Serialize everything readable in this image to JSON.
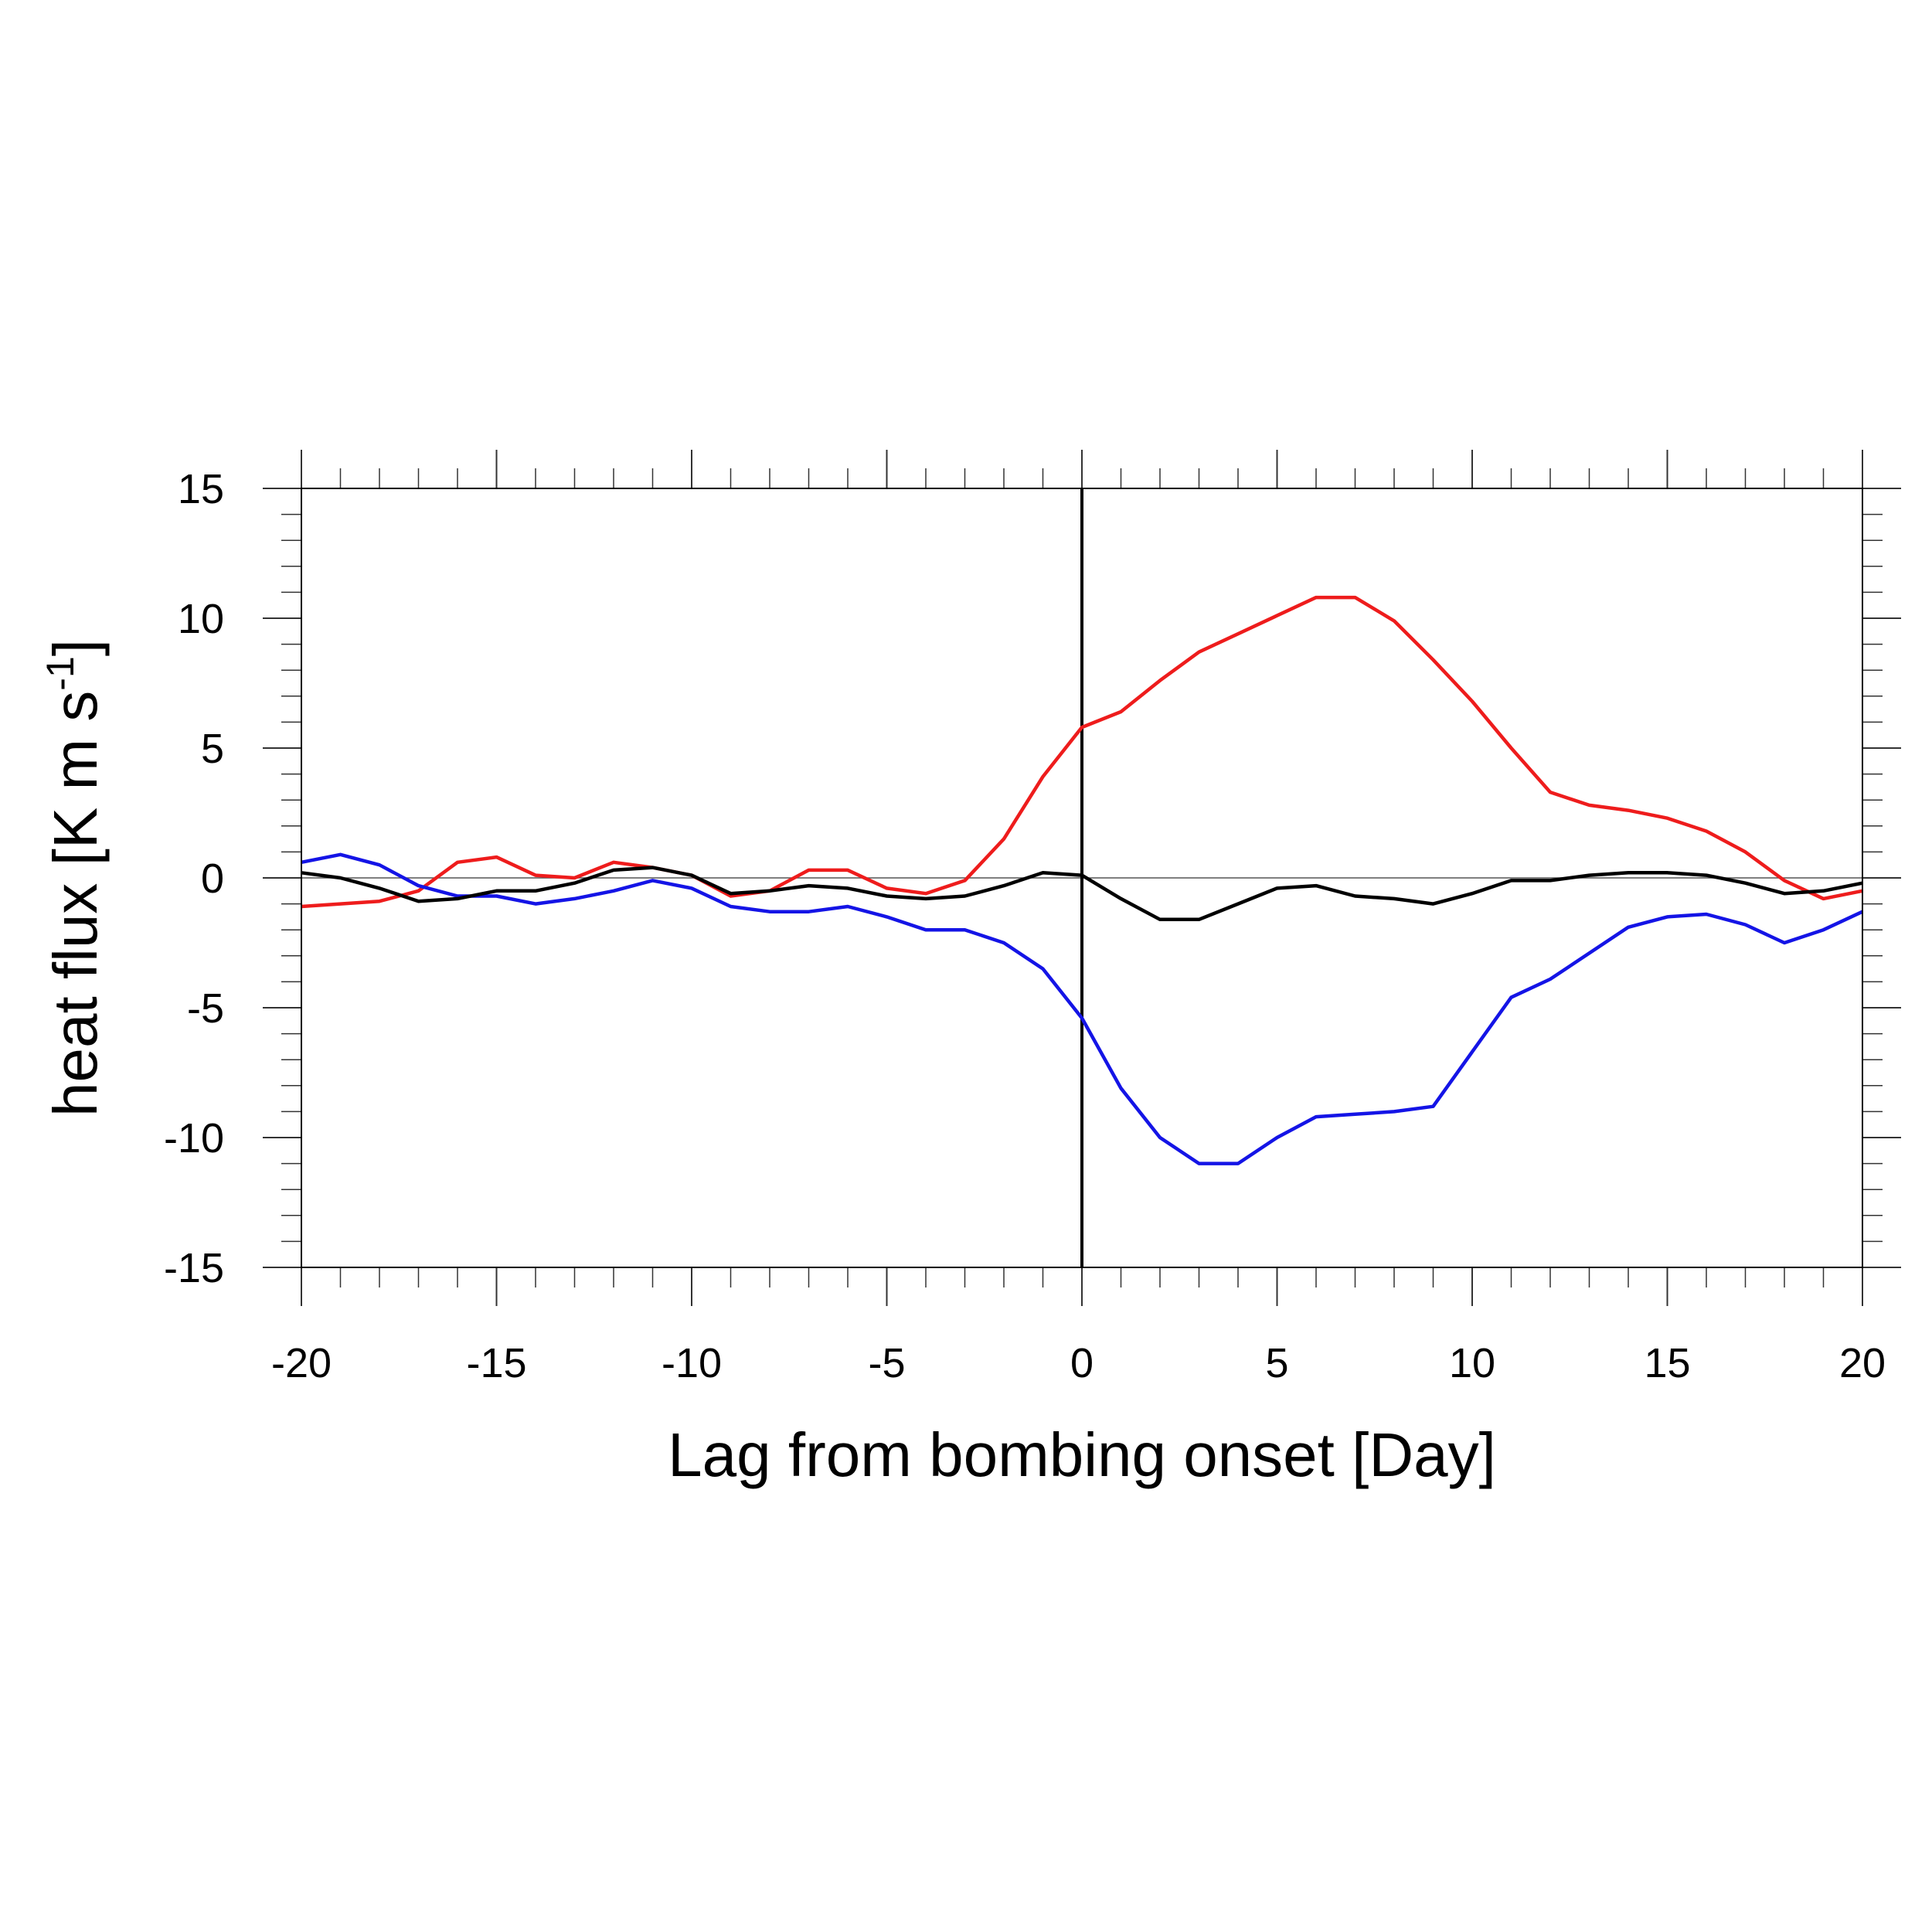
{
  "chart_data": {
    "type": "line",
    "xlabel": "Lag from bombing onset [Day]",
    "ylabel": {
      "main": "heat flux [K m s",
      "superscript": "-1",
      "close": "]"
    },
    "xlim": [
      -20,
      20
    ],
    "ylim": [
      -15,
      15
    ],
    "xticks": [
      -20,
      -15,
      -10,
      -5,
      0,
      5,
      10,
      15,
      20
    ],
    "yticks": [
      15,
      10,
      5,
      0,
      -5,
      -10,
      -15
    ],
    "grid": false,
    "legend": "none",
    "reference_lines": {
      "horizontal_y": 0,
      "vertical_x": 0
    },
    "x": [
      -20,
      -19,
      -18,
      -17,
      -16,
      -15,
      -14,
      -13,
      -12,
      -11,
      -10,
      -9,
      -8,
      -7,
      -6,
      -5,
      -4,
      -3,
      -2,
      -1,
      0,
      1,
      2,
      3,
      4,
      5,
      6,
      7,
      8,
      9,
      10,
      11,
      12,
      13,
      14,
      15,
      16,
      17,
      18,
      19,
      20
    ],
    "series": [
      {
        "color": "#ee1c1c",
        "values": [
          -1.1,
          -1.0,
          -0.9,
          -0.5,
          0.6,
          0.8,
          0.1,
          0.0,
          0.6,
          0.4,
          0.1,
          -0.7,
          -0.5,
          0.3,
          0.3,
          -0.4,
          -0.6,
          -0.1,
          1.5,
          3.9,
          5.8,
          6.4,
          7.6,
          8.7,
          9.4,
          10.1,
          10.8,
          10.8,
          9.9,
          8.4,
          6.8,
          5.0,
          3.3,
          2.8,
          2.6,
          2.3,
          1.8,
          1.0,
          -0.1,
          -0.8,
          -0.5
        ]
      },
      {
        "color": "#1414e6",
        "values": [
          0.6,
          0.9,
          0.5,
          -0.3,
          -0.7,
          -0.7,
          -1.0,
          -0.8,
          -0.5,
          -0.1,
          -0.4,
          -1.1,
          -1.3,
          -1.3,
          -1.1,
          -1.5,
          -2.0,
          -2.0,
          -2.5,
          -3.5,
          -5.4,
          -8.1,
          -10.0,
          -11.0,
          -11.0,
          -10.0,
          -9.2,
          -9.1,
          -9.0,
          -8.8,
          -6.7,
          -4.6,
          -3.9,
          -2.9,
          -1.9,
          -1.5,
          -1.4,
          -1.8,
          -2.5,
          -2.0,
          -1.3
        ]
      },
      {
        "color": "#000000",
        "values": [
          0.2,
          0.0,
          -0.4,
          -0.9,
          -0.8,
          -0.5,
          -0.5,
          -0.2,
          0.3,
          0.4,
          0.1,
          -0.6,
          -0.5,
          -0.3,
          -0.4,
          -0.7,
          -0.8,
          -0.7,
          -0.3,
          0.2,
          0.1,
          -0.8,
          -1.6,
          -1.6,
          -1.0,
          -0.4,
          -0.3,
          -0.7,
          -0.8,
          -1.0,
          -0.6,
          -0.1,
          -0.1,
          0.1,
          0.2,
          0.2,
          0.1,
          -0.2,
          -0.6,
          -0.5,
          -0.2
        ]
      }
    ]
  }
}
